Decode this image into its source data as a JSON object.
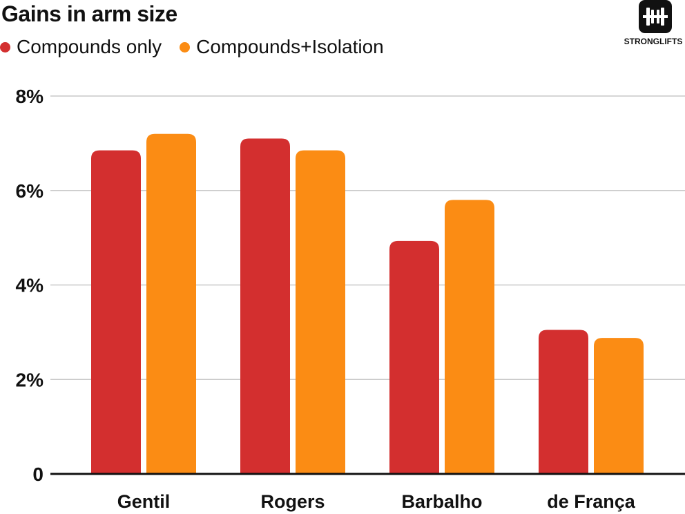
{
  "chart_data": {
    "type": "bar",
    "title": "Gains in arm size",
    "categories": [
      "Gentil",
      "Rogers",
      "Barbalho",
      "de França"
    ],
    "series": [
      {
        "name": "Compounds only",
        "color": "#d32f2f",
        "values": [
          6.85,
          7.1,
          4.93,
          3.05
        ]
      },
      {
        "name": "Compounds+Isolation",
        "color": "#fb8c14",
        "values": [
          7.2,
          6.85,
          5.8,
          2.88
        ]
      }
    ],
    "yticks": [
      "0",
      "2%",
      "4%",
      "6%",
      "8%"
    ],
    "ytick_values": [
      0,
      2,
      4,
      6,
      8
    ],
    "ylim": [
      0,
      8
    ],
    "xlabel": "",
    "ylabel": "",
    "grid": true,
    "legend_position": "top-left"
  },
  "logo": {
    "text": "STRONGLIFTS",
    "icon": "barbell-icon"
  },
  "colors": {
    "grid": "#c8c8c8",
    "axis": "#111111",
    "text": "#111111"
  }
}
